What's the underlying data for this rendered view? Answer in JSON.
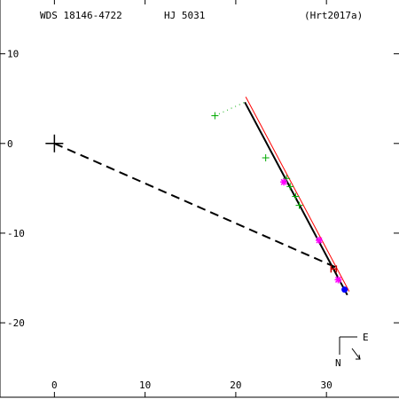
{
  "header": {
    "wds": "WDS 18146-4722",
    "name": "HJ 5031",
    "reference": "(Hrt2017a)"
  },
  "compass": {
    "east": "E",
    "north": "N"
  },
  "chart_data": {
    "type": "scatter",
    "xlim": [
      -6,
      38
    ],
    "ylim": [
      -28.3,
      16
    ],
    "x_ticks": [
      0,
      10,
      20,
      30
    ],
    "y_ticks": [
      10,
      0,
      -10,
      -20
    ],
    "x_tick_labels": [
      "0",
      "10",
      "20",
      "30"
    ],
    "y_tick_labels": [
      "10",
      "0",
      "-10",
      "-20"
    ],
    "primary": {
      "x": 0,
      "y": 0
    },
    "series": [
      {
        "kind": "line",
        "color": "#000000",
        "dash": "",
        "width": 2,
        "points": [
          [
            21,
            4.6
          ],
          [
            32.3,
            -16.9
          ]
        ]
      },
      {
        "kind": "line",
        "color": "#ff0000",
        "dash": "",
        "width": 1,
        "points": [
          [
            21.1,
            5.2
          ],
          [
            32.5,
            -16.5
          ]
        ]
      },
      {
        "kind": "line",
        "color": "#000000",
        "dash": "10,6",
        "width": 2,
        "points": [
          [
            0,
            0
          ],
          [
            31,
            -13.8
          ]
        ]
      },
      {
        "kind": "line",
        "color": "#00aa00",
        "dash": "1,4",
        "width": 1,
        "points": [
          [
            17.7,
            3.1
          ],
          [
            21,
            4.6
          ]
        ]
      }
    ],
    "observations": [
      {
        "marker": "plus",
        "color": "#00aa00",
        "x": 17.7,
        "y": 3.1
      },
      {
        "marker": "plus",
        "color": "#00aa00",
        "x": 23.3,
        "y": -1.6
      },
      {
        "marker": "plus",
        "color": "#00aa00",
        "x": 25.6,
        "y": -3.9
      },
      {
        "marker": "plus",
        "color": "#00aa00",
        "x": 26.0,
        "y": -4.8
      },
      {
        "marker": "plus",
        "color": "#00aa00",
        "x": 26.6,
        "y": -5.9
      },
      {
        "marker": "plus",
        "color": "#00aa00",
        "x": 27.0,
        "y": -6.9
      },
      {
        "marker": "star",
        "color": "#ff00ff",
        "x": 25.3,
        "y": -4.3
      },
      {
        "marker": "star",
        "color": "#ff00ff",
        "x": 29.2,
        "y": -10.8
      },
      {
        "marker": "star",
        "color": "#ff00ff",
        "x": 31.3,
        "y": -15.2
      },
      {
        "marker": "h",
        "color": "#cc0000",
        "x": 30.8,
        "y": -14.0
      },
      {
        "marker": "dot",
        "color": "#0000ff",
        "x": 32.0,
        "y": -16.3
      }
    ]
  }
}
